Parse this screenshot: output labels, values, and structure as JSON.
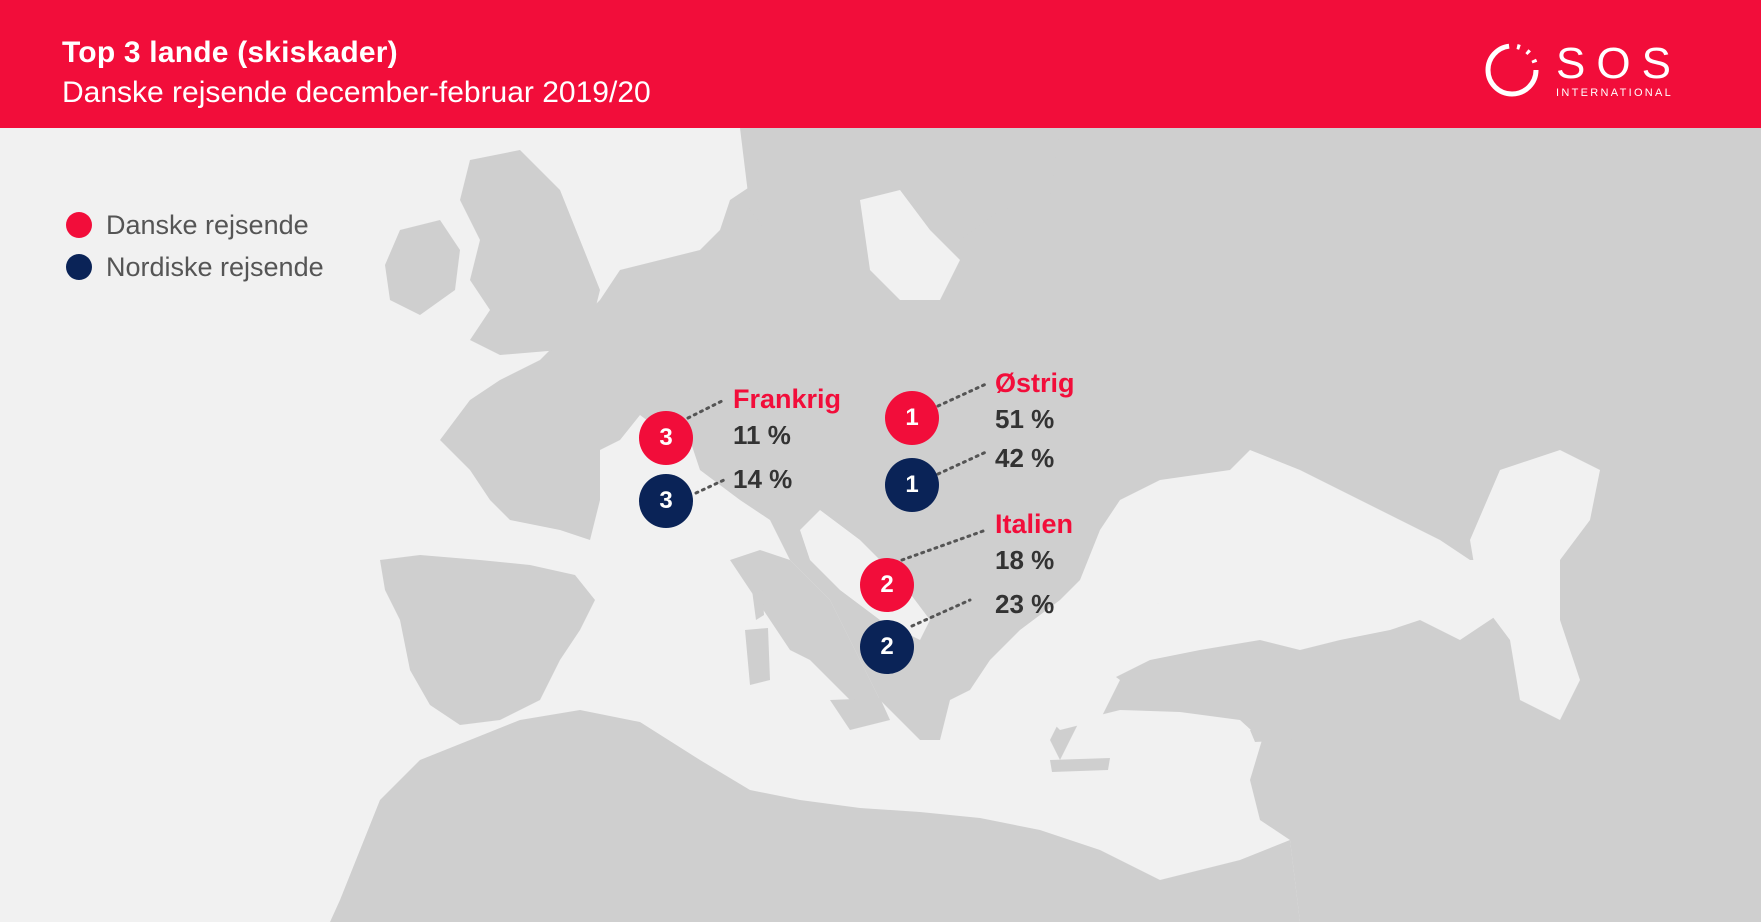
{
  "header": {
    "title": "Top 3 lande (skiskader)",
    "subtitle": "Danske rejsende december-februar 2019/20",
    "logo_word": "SOS",
    "logo_sub": "INTERNATIONAL"
  },
  "legend": [
    {
      "label": "Danske rejsende",
      "color": "#f20d3a"
    },
    {
      "label": "Nordiske rejsende",
      "color": "#0a2357"
    }
  ],
  "countries": {
    "austria": {
      "name": "Østrig",
      "rank_danish": "1",
      "rank_nordic": "1",
      "pct_danish": "51 %",
      "pct_nordic": "42 %"
    },
    "italy": {
      "name": "Italien",
      "rank_danish": "2",
      "rank_nordic": "2",
      "pct_danish": "18 %",
      "pct_nordic": "23 %"
    },
    "france": {
      "name": "Frankrig",
      "rank_danish": "3",
      "rank_nordic": "3",
      "pct_danish": "11 %",
      "pct_nordic": "14 %"
    }
  },
  "colors": {
    "header_red": "#f20d3a",
    "nordic_navy": "#0a2357",
    "land": "#cfcfcf",
    "sea": "#f1f1f1"
  }
}
